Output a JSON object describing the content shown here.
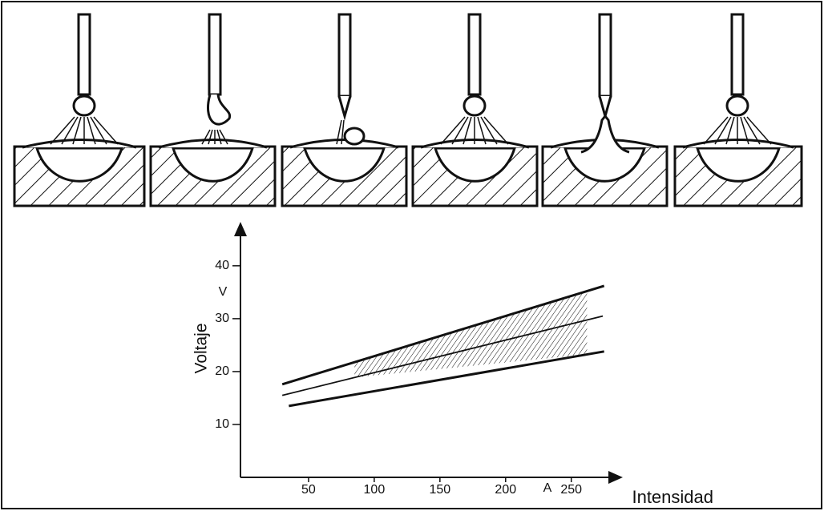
{
  "chart_data": {
    "type": "line",
    "x_label": "Intensidad",
    "x_unit": "A",
    "y_label": "Voltaje",
    "y_unit": "V",
    "xlim": [
      0,
      288
    ],
    "ylim": [
      0,
      48
    ],
    "xticks": [
      50,
      100,
      150,
      200,
      250
    ],
    "yticks": [
      10,
      20,
      30,
      40
    ],
    "series": [
      {
        "color": "#111111",
        "x": [
          30,
          275
        ],
        "values": [
          17.6,
          36.2
        ]
      },
      {
        "color": "#111111",
        "x": [
          30,
          274
        ],
        "values": [
          15.5,
          30.5
        ]
      },
      {
        "color": "#111111",
        "x": [
          35,
          275
        ],
        "values": [
          13.5,
          23.8
        ]
      }
    ],
    "shaded_range": [
      85,
      262
    ]
  }
}
